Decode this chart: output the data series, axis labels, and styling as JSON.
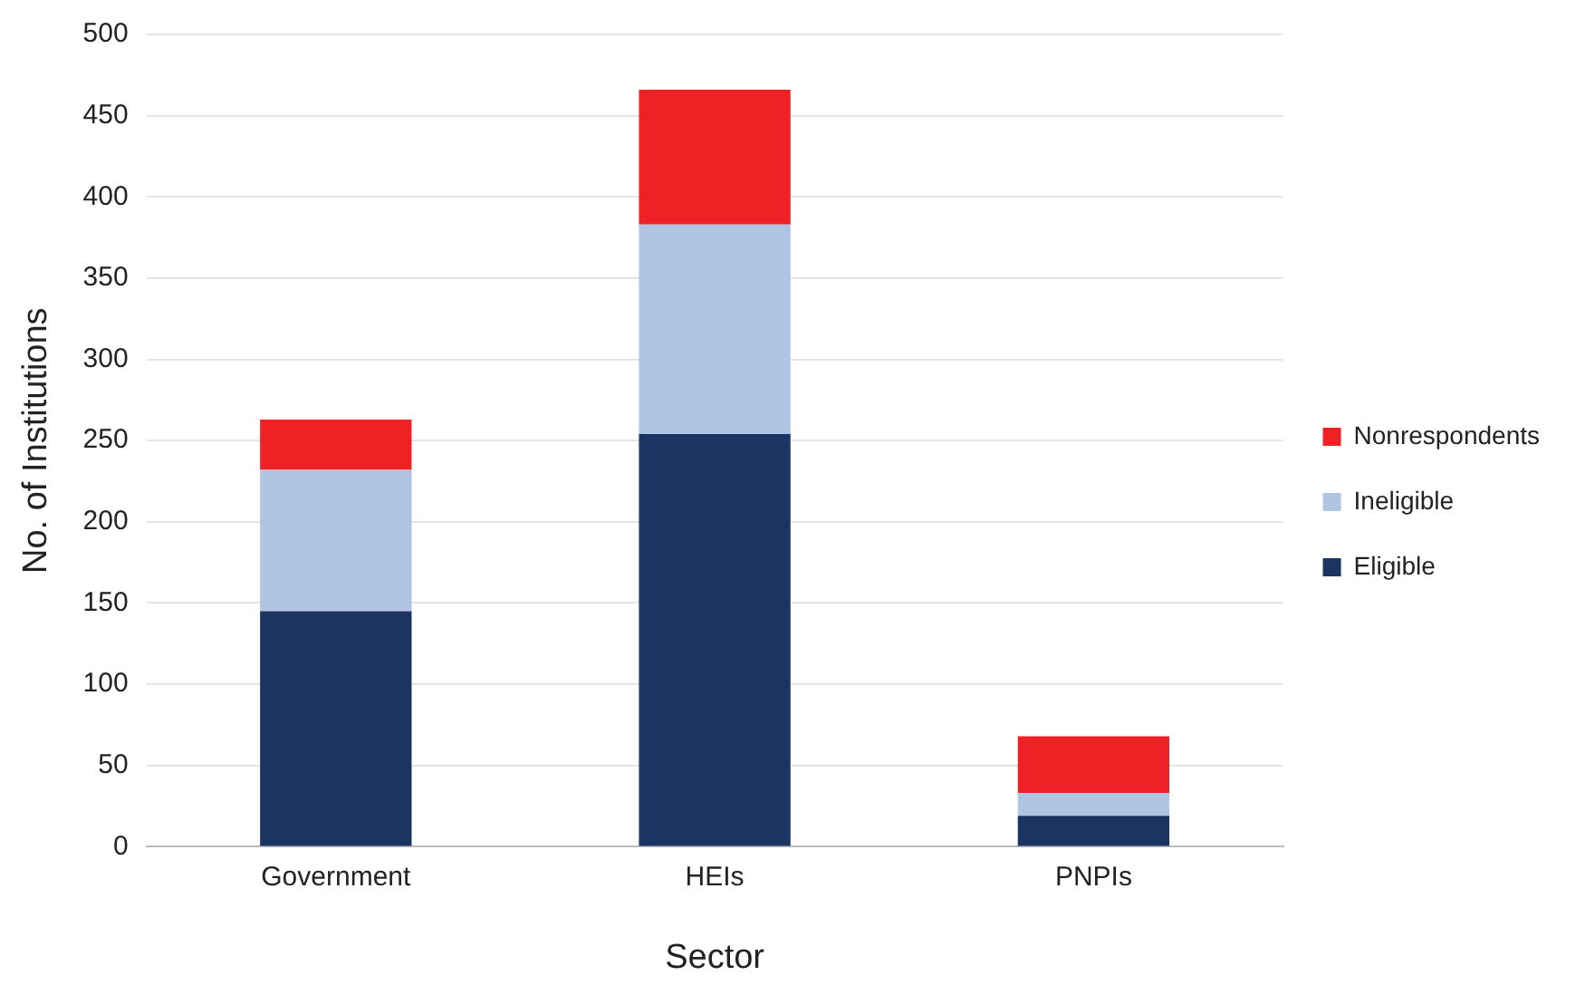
{
  "chart_data": {
    "type": "bar",
    "xlabel": "Sector",
    "ylabel": "No. of Institutions",
    "categories": [
      "Government",
      "HEIs",
      "PNPIs"
    ],
    "series": [
      {
        "name": "Eligible",
        "color": "#1c3461",
        "values": [
          145,
          254,
          19
        ]
      },
      {
        "name": "Ineligible",
        "color": "#b0c4e4",
        "values": [
          87,
          129,
          14
        ]
      },
      {
        "name": "Nonrespondents",
        "color": "#ee2224",
        "values": [
          31,
          83,
          35
        ]
      }
    ],
    "stacked": true,
    "ylim": [
      0,
      500
    ],
    "yticks": [
      0,
      50,
      100,
      150,
      200,
      250,
      300,
      350,
      400,
      450,
      500
    ],
    "grid": "y",
    "legend": "right"
  }
}
